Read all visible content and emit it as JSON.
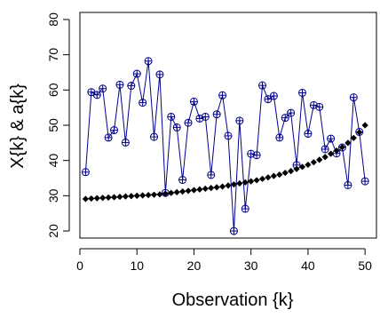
{
  "chart_data": {
    "type": "line",
    "title": "",
    "xlabel": "Observation {k}",
    "ylabel": "X{k} & a{k}",
    "xlim": [
      0,
      52
    ],
    "ylim": [
      18,
      82
    ],
    "xticks": [
      0,
      10,
      20,
      30,
      40,
      50
    ],
    "yticks": [
      20,
      30,
      40,
      50,
      60,
      70,
      80
    ],
    "grid": false,
    "legend": "none",
    "colors": {
      "observed": "#00008B",
      "fitted": "#000000"
    },
    "series": [
      {
        "marker": "circle-cross",
        "style": "line+points",
        "x": [
          1,
          2,
          3,
          4,
          5,
          6,
          7,
          8,
          9,
          10,
          11,
          12,
          13,
          14,
          15,
          16,
          17,
          18,
          19,
          20,
          21,
          22,
          23,
          24,
          25,
          26,
          27,
          28,
          29,
          30,
          31,
          32,
          33,
          34,
          35,
          36,
          37,
          38,
          39,
          40,
          41,
          42,
          43,
          44,
          45,
          46,
          47,
          48,
          49,
          50
        ],
        "values": [
          36.7,
          59.4,
          58.6,
          60.4,
          46.5,
          48.6,
          61.5,
          45.1,
          61.2,
          64.6,
          56.4,
          68.2,
          46.7,
          64.4,
          30.8,
          52.4,
          49.4,
          34.5,
          50.7,
          56.7,
          51.9,
          52.4,
          35.9,
          53.1,
          58.5,
          47.0,
          20.0,
          51.3,
          26.3,
          41.9,
          41.5,
          61.3,
          57.4,
          58.3,
          46.5,
          52.1,
          53.5,
          38.7,
          59.2,
          47.6,
          55.7,
          55.2,
          43.2,
          46.2,
          42.0,
          43.7,
          33.0,
          57.9,
          48.1,
          34.1
        ]
      },
      {
        "marker": "diamond",
        "style": "points",
        "x": [
          1,
          2,
          3,
          4,
          5,
          6,
          7,
          8,
          9,
          10,
          11,
          12,
          13,
          14,
          15,
          16,
          17,
          18,
          19,
          20,
          21,
          22,
          23,
          24,
          25,
          26,
          27,
          28,
          29,
          30,
          31,
          32,
          33,
          34,
          35,
          36,
          37,
          38,
          39,
          40,
          41,
          42,
          43,
          44,
          45,
          46,
          47,
          48,
          49,
          50
        ],
        "values": [
          29.1,
          29.2,
          29.3,
          29.4,
          29.5,
          29.6,
          29.7,
          29.8,
          29.9,
          30.0,
          30.1,
          30.2,
          30.3,
          30.4,
          30.6,
          30.8,
          31.0,
          31.2,
          31.4,
          31.6,
          31.8,
          32.0,
          32.2,
          32.4,
          32.6,
          32.9,
          33.2,
          33.5,
          33.8,
          34.1,
          34.4,
          34.8,
          35.2,
          35.6,
          36.0,
          36.5,
          37.0,
          37.6,
          38.2,
          38.8,
          39.5,
          40.2,
          41.0,
          41.9,
          42.8,
          43.8,
          45.0,
          46.4,
          48.0,
          50.0
        ]
      }
    ]
  }
}
